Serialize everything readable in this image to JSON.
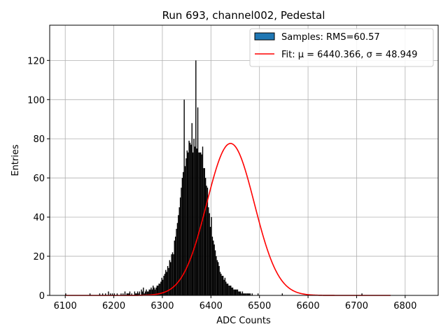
{
  "chart_data": {
    "type": "bar",
    "subtype": "histogram",
    "title": "Run 693, channel002, Pedestal",
    "xlabel": "ADC Counts",
    "ylabel": "Entries",
    "xlim": [
      6068,
      6868
    ],
    "ylim": [
      0,
      138
    ],
    "xticks": [
      6100,
      6200,
      6300,
      6400,
      6500,
      6600,
      6700,
      6800
    ],
    "yticks": [
      0,
      20,
      40,
      60,
      80,
      100,
      120
    ],
    "grid": true,
    "legend_position": "top-right",
    "colors": {
      "bars": "#000000",
      "legend_patch": "#1f77b4",
      "fit": "#ff0000",
      "grid": "#b0b0b0"
    },
    "series": [
      {
        "name": "Samples: RMS=60.57",
        "kind": "histogram",
        "bin_width": 2,
        "x_start": 6100,
        "counts": [
          1,
          0,
          0,
          0,
          0,
          0,
          0,
          0,
          0,
          0,
          0,
          0,
          0,
          0,
          0,
          0,
          0,
          0,
          0,
          0,
          0,
          0,
          0,
          0,
          0,
          1,
          0,
          0,
          0,
          0,
          0,
          0,
          0,
          0,
          0,
          1,
          0,
          0,
          1,
          0,
          0,
          1,
          0,
          0,
          2,
          0,
          1,
          0,
          1,
          0,
          1,
          0,
          0,
          1,
          0,
          0,
          0,
          1,
          0,
          1,
          0,
          2,
          0,
          1,
          1,
          1,
          2,
          0,
          1,
          0,
          0,
          2,
          1,
          1,
          2,
          1,
          2,
          0,
          3,
          2,
          4,
          1,
          2,
          3,
          2,
          2,
          3,
          3,
          4,
          3,
          5,
          4,
          3,
          4,
          5,
          5,
          6,
          6,
          7,
          9,
          8,
          10,
          11,
          13,
          12,
          15,
          14,
          18,
          17,
          21,
          22,
          21,
          28,
          30,
          34,
          37,
          41,
          45,
          50,
          55,
          60,
          63,
          100,
          66,
          70,
          74,
          73,
          79,
          78,
          77,
          88,
          73,
          80,
          76,
          120,
          75,
          96,
          73,
          73,
          73,
          72,
          76,
          65,
          65,
          60,
          56,
          55,
          45,
          42,
          35,
          40,
          30,
          28,
          26,
          23,
          20,
          18,
          17,
          15,
          12,
          11,
          10,
          10,
          8,
          9,
          7,
          6,
          6,
          5,
          5,
          5,
          4,
          4,
          3,
          3,
          3,
          3,
          3,
          2,
          2,
          2,
          1,
          2,
          1,
          1,
          1,
          1,
          1,
          1,
          1,
          1,
          0,
          1,
          0,
          0,
          0,
          0,
          0,
          1,
          0,
          0,
          0,
          0,
          0,
          0,
          0,
          0,
          0,
          0,
          0,
          0,
          0,
          0,
          0,
          0,
          0,
          0,
          0,
          0,
          0,
          0,
          0,
          0,
          1,
          0,
          0,
          0,
          0,
          0,
          0,
          0,
          0,
          0,
          0,
          0,
          0,
          0,
          0,
          0,
          0,
          0,
          0,
          0,
          0,
          0,
          0,
          0,
          0,
          0,
          0,
          0,
          0,
          0,
          0,
          0,
          0,
          0,
          0,
          0,
          0,
          0,
          0,
          0,
          0,
          0,
          0,
          0,
          0,
          0,
          0,
          0,
          0,
          0,
          0,
          0,
          0,
          0,
          0,
          0,
          0,
          0,
          0,
          0,
          0,
          0,
          0,
          0,
          0,
          0,
          0,
          0,
          0,
          0,
          0,
          0,
          0,
          0,
          0,
          0,
          0,
          0,
          0,
          0,
          0,
          0,
          1
        ]
      },
      {
        "name": "Fit: μ = 6440.366, σ = 48.949",
        "kind": "gaussian_fit",
        "mu": 6440.366,
        "sigma": 48.949,
        "amplitude": 77.6,
        "x_range": [
          6100,
          6770
        ]
      }
    ]
  }
}
